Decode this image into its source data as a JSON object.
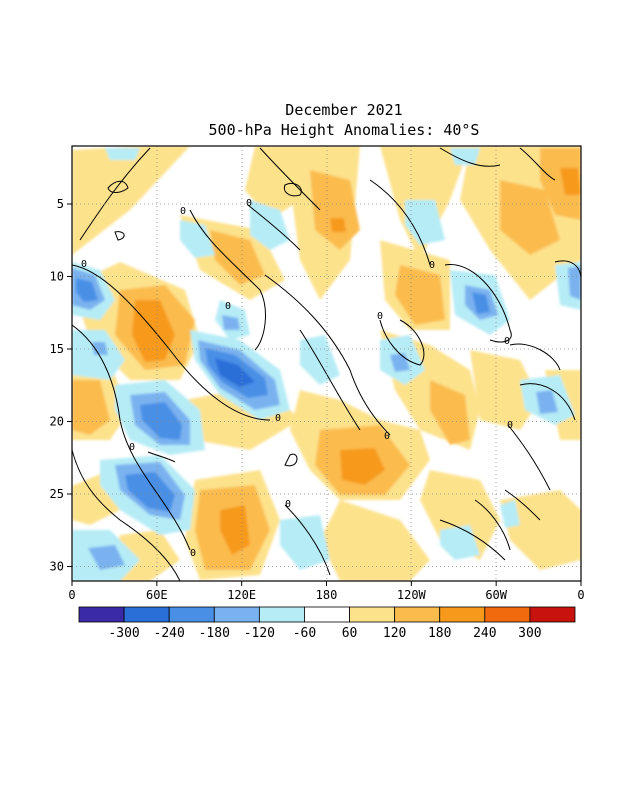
{
  "chart_data": {
    "type": "heatmap",
    "title": "December 2021",
    "subtitle": "500-hPa Height Anomalies: 40°S",
    "xlabel": "",
    "ylabel": "",
    "x_ticks": [
      "0",
      "60E",
      "120E",
      "180",
      "120W",
      "60W",
      "0"
    ],
    "y_ticks": [
      "5",
      "10",
      "15",
      "20",
      "25",
      "30"
    ],
    "ylim": [
      31,
      1
    ],
    "grid": true,
    "contour_label": "0",
    "colorbar": {
      "colors": [
        "#3a2aa8",
        "#2a6ed8",
        "#4a8fe6",
        "#7ab2f0",
        "#b6ecf6",
        "#ffffff",
        "#fde28c",
        "#fbbc4e",
        "#f79a1c",
        "#f26a0e",
        "#c8120e"
      ],
      "labels": [
        "-300",
        "-240",
        "-180",
        "-120",
        "-60",
        "60",
        "120",
        "180",
        "240",
        "300"
      ]
    },
    "features": [
      {
        "day": 16.5,
        "lon": 123,
        "value": -270
      },
      {
        "day": 20,
        "lon": 72,
        "value": -180
      },
      {
        "day": 24.5,
        "lon": 70,
        "value": -210
      },
      {
        "day": 11,
        "lon": 8,
        "value": -180
      },
      {
        "day": 12,
        "lon": 292,
        "value": -170
      },
      {
        "day": 11,
        "lon": 352,
        "value": -160
      },
      {
        "day": 19,
        "lon": 330,
        "value": -150
      },
      {
        "day": 16,
        "lon": 222,
        "value": -140
      },
      {
        "day": 13,
        "lon": 86,
        "value": 220
      },
      {
        "day": 23,
        "lon": 205,
        "value": 230
      },
      {
        "day": 28.5,
        "lon": 112,
        "value": 230
      },
      {
        "day": 5.5,
        "lon": 203,
        "value": 190
      },
      {
        "day": 3.5,
        "lon": 355,
        "value": 200
      },
      {
        "day": 13,
        "lon": 244,
        "value": 170
      },
      {
        "day": 20,
        "lon": 266,
        "value": 160
      }
    ]
  }
}
